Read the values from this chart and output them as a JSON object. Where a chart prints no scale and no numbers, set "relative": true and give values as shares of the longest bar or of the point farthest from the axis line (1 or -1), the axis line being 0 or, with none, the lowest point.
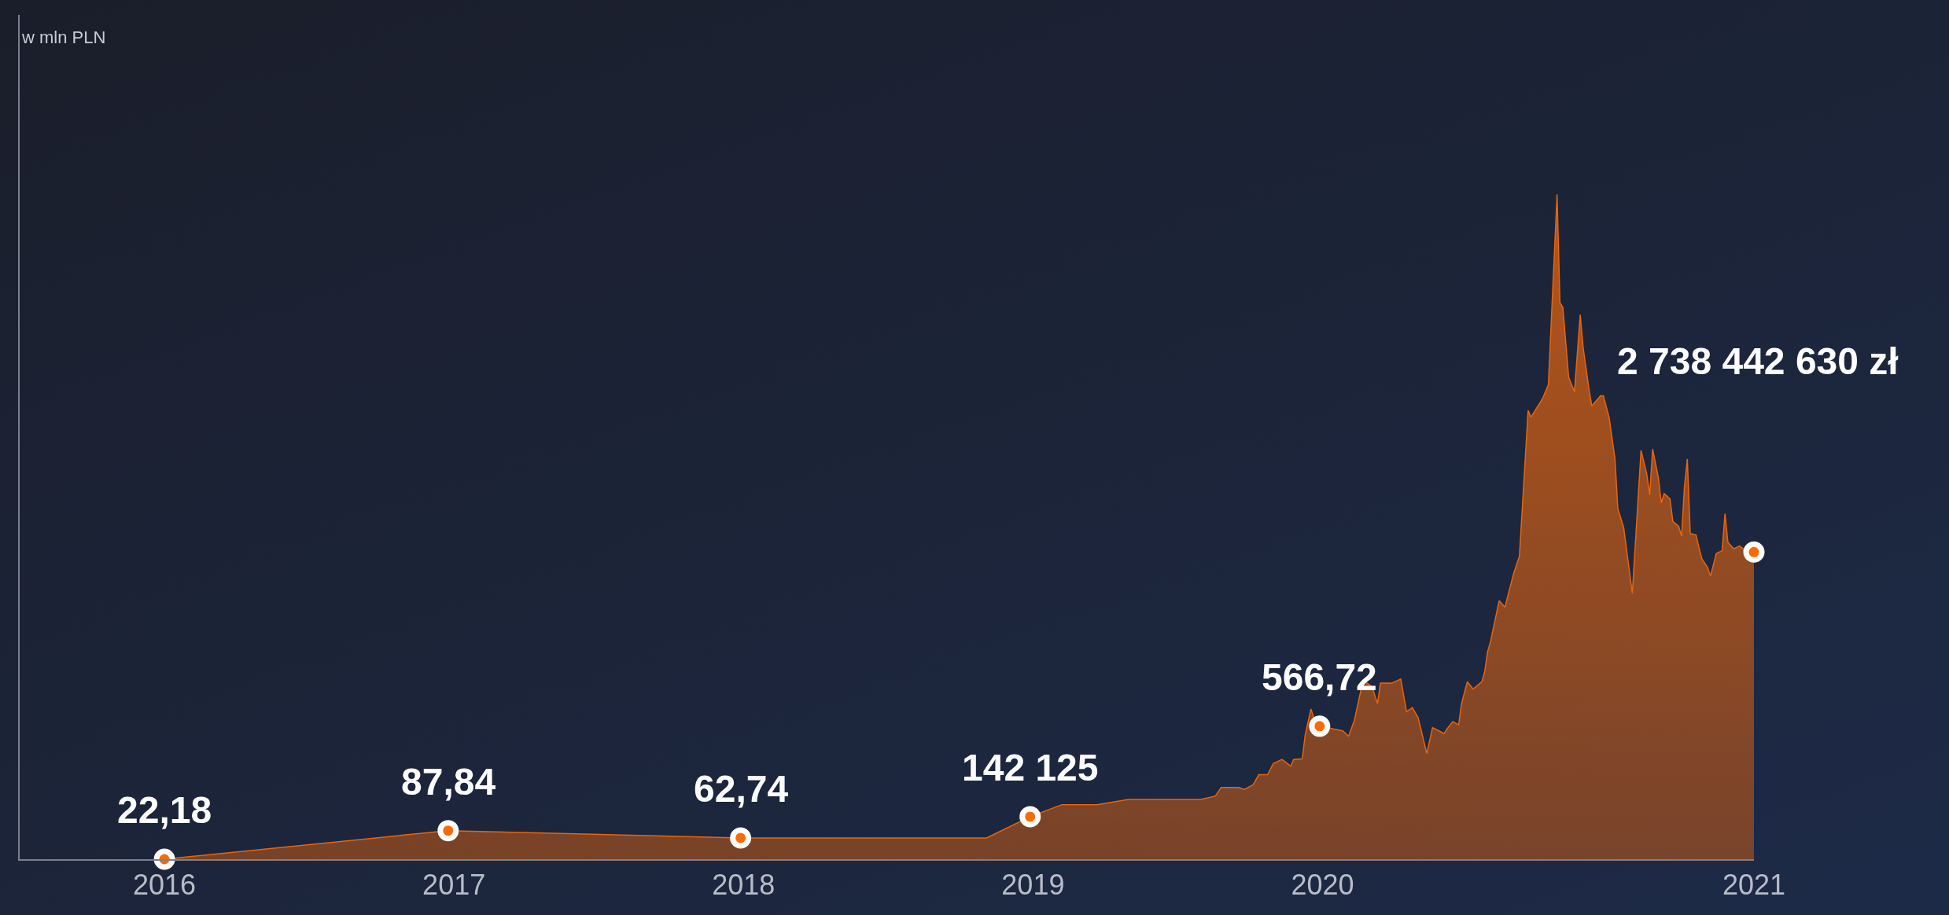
{
  "chart_data": {
    "type": "area",
    "relative": true,
    "grid": false,
    "xlim": [
      2015.5,
      2021.49
    ],
    "xticks": [
      2016,
      2017,
      2018,
      2019,
      2020,
      {
        "value": 2021.49,
        "label": "2021"
      }
    ],
    "series": [
      {
        "color": "#e8650e",
        "marker": "none",
        "x": [
          2016,
          2016.98,
          2017.99,
          2018.84,
          2018.99,
          2019.1,
          2019.22,
          2019.33,
          2019.58,
          2019.63,
          2019.65,
          2019.71,
          2019.73,
          2019.76,
          2019.78,
          2019.81,
          2019.83,
          2019.86,
          2019.89,
          2019.9,
          2019.93,
          2019.94,
          2019.96,
          2019.98,
          2019.99,
          2020.07,
          2020.09,
          2020.11,
          2020.14,
          2020.17,
          2020.19,
          2020.2,
          2020.24,
          2020.27,
          2020.29,
          2020.31,
          2020.33,
          2020.36,
          2020.38,
          2020.42,
          2020.43,
          2020.45,
          2020.47,
          2020.48,
          2020.5,
          2020.52,
          2020.55,
          2020.56,
          2020.57,
          2020.58,
          2020.61,
          2020.63,
          2020.66,
          2020.68,
          2020.71,
          2020.72,
          2020.76,
          2020.78,
          2020.81,
          2020.82,
          2020.83,
          2020.85,
          2020.87,
          2020.89,
          2020.9,
          2020.92,
          2020.93,
          2020.96,
          2020.97,
          2020.99,
          2021.01,
          2021.02,
          2021.04,
          2021.07,
          2021.1,
          2021.12,
          2021.13,
          2021.14,
          2021.16,
          2021.17,
          2021.18,
          2021.2,
          2021.21,
          2021.23,
          2021.24,
          2021.25,
          2021.26,
          2021.27,
          2021.29,
          2021.3,
          2021.31,
          2021.33,
          2021.34,
          2021.36,
          2021.38,
          2021.39,
          2021.4,
          2021.42,
          2021.44,
          2021.46,
          2021.49
        ],
        "values": [
          0,
          0.043,
          0.032,
          0.032,
          0.064,
          0.082,
          0.082,
          0.09,
          0.09,
          0.095,
          0.108,
          0.108,
          0.105,
          0.112,
          0.127,
          0.127,
          0.144,
          0.15,
          0.14,
          0.15,
          0.151,
          0.187,
          0.226,
          0.2,
          0.2,
          0.193,
          0.185,
          0.209,
          0.269,
          0.26,
          0.234,
          0.265,
          0.265,
          0.271,
          0.222,
          0.228,
          0.213,
          0.159,
          0.198,
          0.189,
          0.196,
          0.207,
          0.202,
          0.234,
          0.267,
          0.256,
          0.267,
          0.282,
          0.312,
          0.327,
          0.389,
          0.379,
          0.43,
          0.456,
          0.675,
          0.665,
          0.693,
          0.714,
          1.0,
          0.837,
          0.83,
          0.725,
          0.703,
          0.819,
          0.77,
          0.708,
          0.682,
          0.697,
          0.697,
          0.664,
          0.602,
          0.527,
          0.499,
          0.4,
          0.615,
          0.579,
          0.548,
          0.617,
          0.574,
          0.536,
          0.55,
          0.542,
          0.508,
          0.501,
          0.486,
          0.561,
          0.602,
          0.49,
          0.488,
          0.469,
          0.452,
          0.439,
          0.426,
          0.46,
          0.464,
          0.52,
          0.477,
          0.467,
          0.471,
          0.465,
          0.462
        ]
      },
      {
        "type": "scatter",
        "color": "#ff6a00",
        "marker": "circle",
        "x": [
          2016,
          2016.98,
          2017.99,
          2018.99,
          2019.99,
          2021.49
        ],
        "values": [
          0,
          0.043,
          0.032,
          0.064,
          0.2,
          0.462
        ]
      }
    ],
    "annotations": [
      "w mln PLN",
      {
        "text": "22,18",
        "x": 2016,
        "y": 0
      },
      {
        "text": "87,84",
        "x": 2016.98,
        "y": 0.043
      },
      {
        "text": "62,74",
        "x": 2017.99,
        "y": 0.032
      },
      {
        "text": "142 125",
        "x": 2018.99,
        "y": 0.064
      },
      {
        "text": "566,72",
        "x": 2019.99,
        "y": 0.2
      },
      "2 738 442 630 zł"
    ]
  }
}
